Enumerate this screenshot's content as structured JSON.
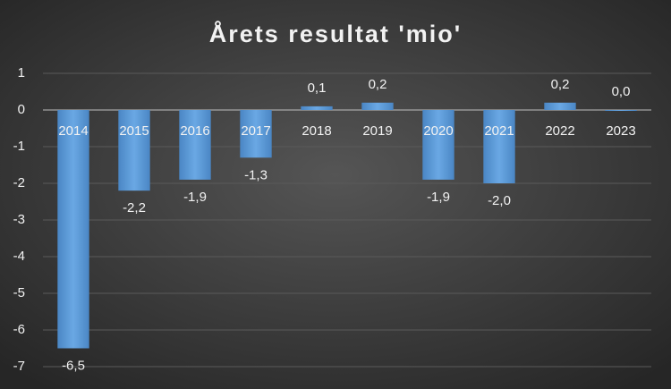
{
  "chart_data": {
    "type": "bar",
    "title": "Årets resultat 'mio'",
    "categories": [
      "2014",
      "2015",
      "2016",
      "2017",
      "2018",
      "2019",
      "2020",
      "2021",
      "2022",
      "2023"
    ],
    "values": [
      -6.5,
      -2.2,
      -1.9,
      -1.3,
      0.1,
      0.2,
      -1.9,
      -2.0,
      0.2,
      0.0
    ],
    "value_labels": [
      "-6,5",
      "-2,2",
      "-1,9",
      "-1,3",
      "0,1",
      "0,2",
      "-1,9",
      "-2,0",
      "0,2",
      "0,0"
    ],
    "color": "#5b9bd5",
    "ylim": [
      -7,
      1
    ],
    "yticks": [
      -7,
      -6,
      -5,
      -4,
      -3,
      -2,
      -1,
      0,
      1
    ],
    "grid": true
  }
}
